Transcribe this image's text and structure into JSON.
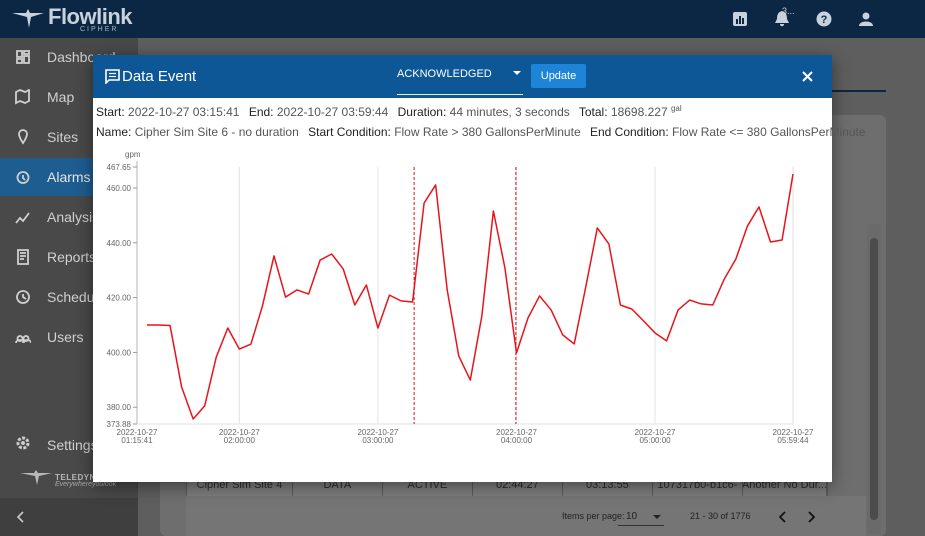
{
  "app": {
    "logo": "Flowlink",
    "logo_sub": "CIPHER",
    "notification_count": "3...",
    "nav": [
      "Dashboard",
      "Map",
      "Sites",
      "Alarms",
      "Analysis",
      "Reports",
      "Schedule",
      "Users"
    ],
    "active_nav": "Alarms",
    "settings": "Settings",
    "brand": "TELEDYNE",
    "brand_tagline": "Everywhereyoulook"
  },
  "background_table": {
    "row": [
      "Cipher Sim Site 4",
      "DATA",
      "ACTIVE",
      "02:44:27",
      "03:13:55",
      "107317b0-b1c6-",
      "Another No Dur..."
    ],
    "items_per_page_label": "Items per page:",
    "items_per_page": 10,
    "range": "21 - 30 of 1776"
  },
  "dialog": {
    "title": "Data Event",
    "status": "ACKNOWLEDGED",
    "update_button": "Update",
    "start": {
      "label": "Start:",
      "value": "2022-10-27 03:15:41"
    },
    "end": {
      "label": "End:",
      "value": "2022-10-27 03:59:44"
    },
    "duration": {
      "label": "Duration:",
      "value": "44 minutes, 3 seconds"
    },
    "total": {
      "label": "Total:",
      "value": 18698.227,
      "unit": "gal"
    },
    "name": {
      "label": "Name:",
      "value": "Cipher Sim Site 6 - no duration"
    },
    "start_condition": {
      "label": "Start Condition:",
      "value": "Flow Rate > 380 GallonsPerMinute"
    },
    "end_condition": {
      "label": "End Condition:",
      "value": "Flow Rate <= 380 GallonsPerMinute"
    }
  },
  "chart_data": {
    "type": "line",
    "y_unit": "gpm",
    "x": [
      "2022-10-27 01:20:00",
      "2022-10-27 01:25:00",
      "2022-10-27 01:30:00",
      "2022-10-27 01:35:00",
      "2022-10-27 01:40:00",
      "2022-10-27 01:45:00",
      "2022-10-27 01:50:00",
      "2022-10-27 01:55:00",
      "2022-10-27 02:00:00",
      "2022-10-27 02:05:00",
      "2022-10-27 02:10:00",
      "2022-10-27 02:15:00",
      "2022-10-27 02:20:00",
      "2022-10-27 02:25:00",
      "2022-10-27 02:30:00",
      "2022-10-27 02:35:00",
      "2022-10-27 02:40:00",
      "2022-10-27 02:45:00",
      "2022-10-27 02:50:00",
      "2022-10-27 02:55:00",
      "2022-10-27 03:00:00",
      "2022-10-27 03:05:00",
      "2022-10-27 03:10:00",
      "2022-10-27 03:15:00",
      "2022-10-27 03:20:00",
      "2022-10-27 03:25:00",
      "2022-10-27 03:30:00",
      "2022-10-27 03:35:00",
      "2022-10-27 03:40:00",
      "2022-10-27 03:45:00",
      "2022-10-27 03:50:00",
      "2022-10-27 03:55:00",
      "2022-10-27 04:00:00",
      "2022-10-27 04:05:00",
      "2022-10-27 04:10:00",
      "2022-10-27 04:15:00",
      "2022-10-27 04:20:00",
      "2022-10-27 04:25:00",
      "2022-10-27 04:30:00",
      "2022-10-27 04:35:00",
      "2022-10-27 04:40:00",
      "2022-10-27 04:45:00",
      "2022-10-27 04:50:00",
      "2022-10-27 04:55:00",
      "2022-10-27 05:00:00",
      "2022-10-27 05:05:00",
      "2022-10-27 05:10:00",
      "2022-10-27 05:15:00",
      "2022-10-27 05:20:00",
      "2022-10-27 05:25:00",
      "2022-10-27 05:30:00",
      "2022-10-27 05:35:00",
      "2022-10-27 05:40:00",
      "2022-10-27 05:45:00",
      "2022-10-27 05:50:00",
      "2022-10-27 05:55:00",
      "2022-10-27 05:59:44"
    ],
    "series": [
      {
        "color": "#e8141b",
        "values": [
          410,
          410,
          409.8,
          387.4,
          375.7,
          380.5,
          398.3,
          408.9,
          401.2,
          403,
          416.9,
          435.2,
          420.2,
          422.8,
          421.3,
          433.7,
          435.9,
          430.4,
          417.3,
          424.6,
          408.9,
          420.9,
          418.8,
          418.4,
          454.5,
          461.1,
          422.8,
          398.7,
          389.9,
          413.3,
          451.6,
          430.8,
          399.8,
          412.6,
          420.6,
          415.5,
          406.4,
          403.1,
          423.9,
          445.4,
          439.6,
          417.3,
          415.8,
          411.5,
          407.1,
          404.2,
          415.5,
          419.1,
          417.7,
          417.3,
          426.8,
          434.1,
          446.1,
          453.1,
          440.3,
          441,
          465.1
        ]
      }
    ],
    "event_line_color": "#d9141b",
    "xlim": [
      "2022-10-27 01:15:41",
      "2022-10-27 05:59:44"
    ],
    "xticks": [
      "2022-10-27 01:15:41",
      "2022-10-27 02:00:00",
      "2022-10-27 03:00:00",
      "2022-10-27 04:00:00",
      "2022-10-27 05:00:00",
      "2022-10-27 05:59:44"
    ],
    "ylim": [
      373.88,
      467.65
    ],
    "yticks": [
      373.88,
      {
        "value": 380,
        "label": "380.00"
      },
      {
        "value": 400,
        "label": "400.00"
      },
      {
        "value": 420,
        "label": "420.00"
      },
      {
        "value": 440,
        "label": "440.00"
      },
      {
        "value": 460,
        "label": "460.00"
      },
      467.65
    ],
    "grid": "x"
  }
}
